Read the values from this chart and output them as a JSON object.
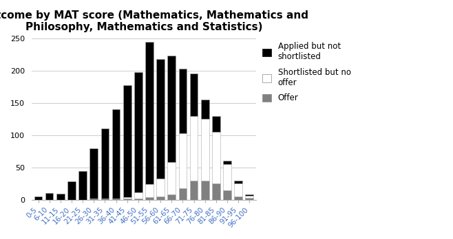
{
  "categories": [
    "0-5",
    "6-10",
    "11-15",
    "16-20",
    "21-25",
    "26-30",
    "31-35",
    "36-40",
    "41-45",
    "46-50",
    "51-55",
    "56-60",
    "61-65",
    "66-70",
    "71-75",
    "76-80",
    "81-85",
    "86-90",
    "91-95",
    "96-100"
  ],
  "applied_not_shortlisted": [
    5,
    11,
    10,
    29,
    45,
    78,
    108,
    138,
    173,
    185,
    220,
    185,
    165,
    100,
    65,
    30,
    25,
    5,
    5,
    2
  ],
  "shortlisted_no_offer": [
    0,
    0,
    0,
    0,
    0,
    0,
    0,
    0,
    2,
    10,
    20,
    28,
    50,
    85,
    100,
    95,
    80,
    40,
    20,
    3
  ],
  "offer": [
    0,
    0,
    0,
    0,
    0,
    2,
    2,
    2,
    2,
    2,
    4,
    5,
    8,
    18,
    30,
    30,
    25,
    15,
    5,
    3
  ],
  "title": "Outcome by MAT score (Mathematics, Mathematics and\nPhilosophy, Mathematics and Statistics)",
  "ylim": [
    0,
    250
  ],
  "yticks": [
    0,
    50,
    100,
    150,
    200,
    250
  ],
  "color_applied": "#000000",
  "color_shortlisted": "#ffffff",
  "color_offer": "#808080",
  "legend_labels": [
    "Applied but not\nshortlisted",
    "Shortlisted but no\noffer",
    "Offer"
  ],
  "title_fontsize": 11,
  "tick_fontsize": 7.5,
  "legend_fontsize": 8.5,
  "bar_edgecolor": "#aaaaaa",
  "bar_linewidth": 0.4
}
